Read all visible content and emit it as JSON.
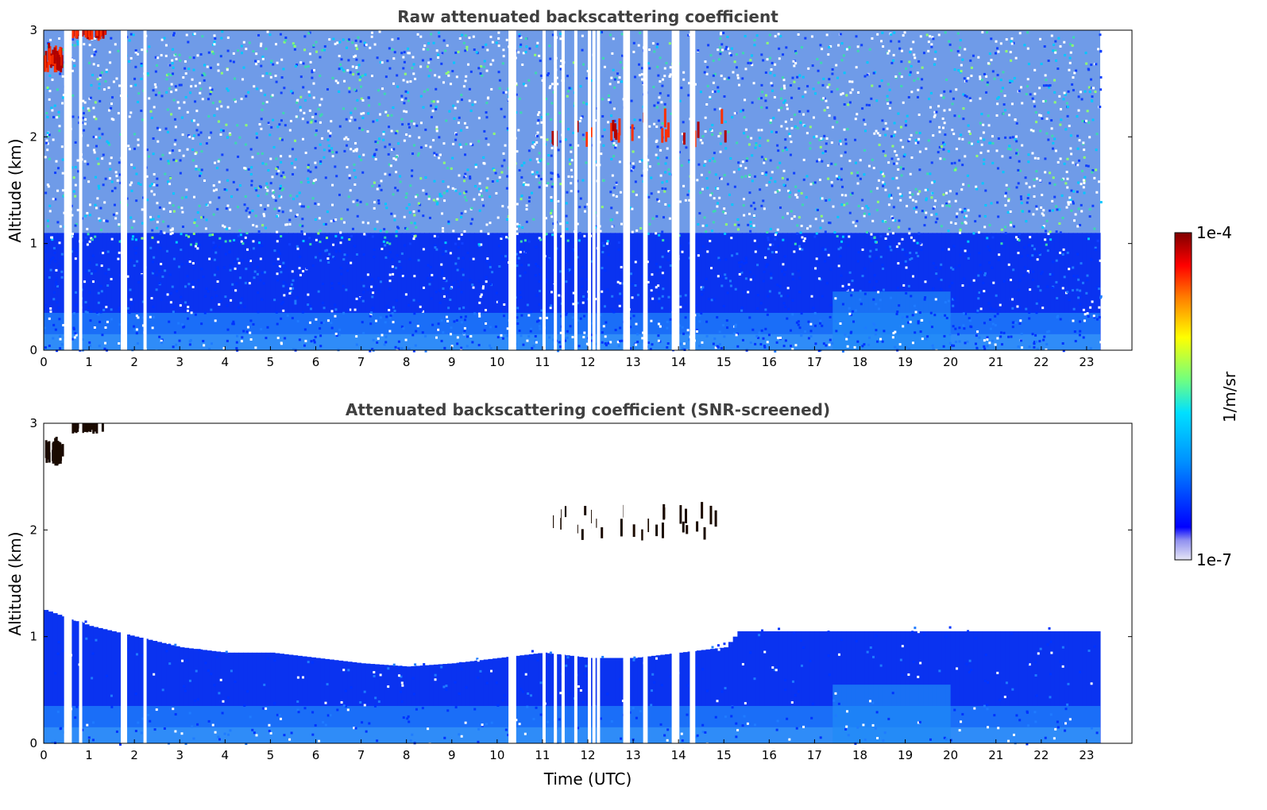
{
  "chart_data": [
    {
      "type": "heatmap",
      "title": "Raw attenuated backscattering coefficient",
      "xlabel": "",
      "ylabel": "Altitude (km)",
      "xlim": [
        0,
        24
      ],
      "ylim": [
        0,
        3
      ],
      "xticks": [
        "0",
        "1",
        "2",
        "3",
        "4",
        "5",
        "6",
        "7",
        "8",
        "9",
        "10",
        "11",
        "12",
        "13",
        "14",
        "15",
        "16",
        "17",
        "18",
        "19",
        "20",
        "21",
        "22",
        "23"
      ],
      "yticks": [
        "0",
        "1",
        "2",
        "3"
      ],
      "data_end_hour": 23.3,
      "gaps_hours": [
        0.45,
        0.5,
        0.55,
        0.78,
        1.7,
        1.72,
        1.77,
        2.2,
        10.25,
        10.3,
        10.35,
        11.0,
        11.25,
        11.42,
        11.7,
        12.0,
        12.1,
        12.2,
        12.78,
        12.82,
        12.86,
        13.22,
        13.25,
        13.85,
        13.9,
        13.95,
        14.25,
        14.3
      ],
      "features": [
        {
          "label": "cloud",
          "hours": [
            0.0,
            0.4
          ],
          "altitude_km": [
            2.6,
            2.8
          ]
        },
        {
          "label": "cloud",
          "hours": [
            0.6,
            1.35
          ],
          "altitude_km": [
            2.9,
            3.0
          ]
        },
        {
          "label": "cloud",
          "hours": [
            11.0,
            15.2
          ],
          "altitude_km": [
            1.9,
            2.3
          ]
        }
      ],
      "boundary_layer_top_km": [
        [
          0,
          1.25
        ],
        [
          1,
          1.1
        ],
        [
          2,
          1.0
        ],
        [
          3,
          0.9
        ],
        [
          4,
          0.85
        ],
        [
          5,
          0.85
        ],
        [
          6,
          0.8
        ],
        [
          7,
          0.75
        ],
        [
          8,
          0.72
        ],
        [
          9,
          0.75
        ],
        [
          10,
          0.8
        ],
        [
          11,
          0.85
        ],
        [
          12,
          0.8
        ],
        [
          13,
          0.8
        ],
        [
          14,
          0.85
        ],
        [
          15,
          0.9
        ],
        [
          15.3,
          1.05
        ],
        [
          16,
          1.05
        ],
        [
          17,
          1.05
        ],
        [
          18,
          1.05
        ],
        [
          19,
          1.05
        ],
        [
          20,
          1.05
        ],
        [
          21,
          1.05
        ],
        [
          22,
          1.05
        ],
        [
          23.3,
          1.05
        ]
      ]
    },
    {
      "type": "heatmap",
      "title": "Attenuated backscattering coefficient (SNR-screened)",
      "xlabel": "Time (UTC)",
      "ylabel": "Altitude (km)",
      "xlim": [
        0,
        24
      ],
      "ylim": [
        0,
        3
      ],
      "xticks": [
        "0",
        "1",
        "2",
        "3",
        "4",
        "5",
        "6",
        "7",
        "8",
        "9",
        "10",
        "11",
        "12",
        "13",
        "14",
        "15",
        "16",
        "17",
        "18",
        "19",
        "20",
        "21",
        "22",
        "23"
      ],
      "yticks": [
        "0",
        "1",
        "2",
        "3"
      ]
    }
  ],
  "colorbar": {
    "label": "1/m/sr",
    "max_label": "1e-4",
    "min_label": "1e-7",
    "scale": "log",
    "colormap": "jet",
    "colors": [
      "#e6e6f5",
      "#0000ff",
      "#0090ff",
      "#00e0ff",
      "#70ff80",
      "#ffff00",
      "#ff8000",
      "#ff0000",
      "#800000"
    ]
  }
}
